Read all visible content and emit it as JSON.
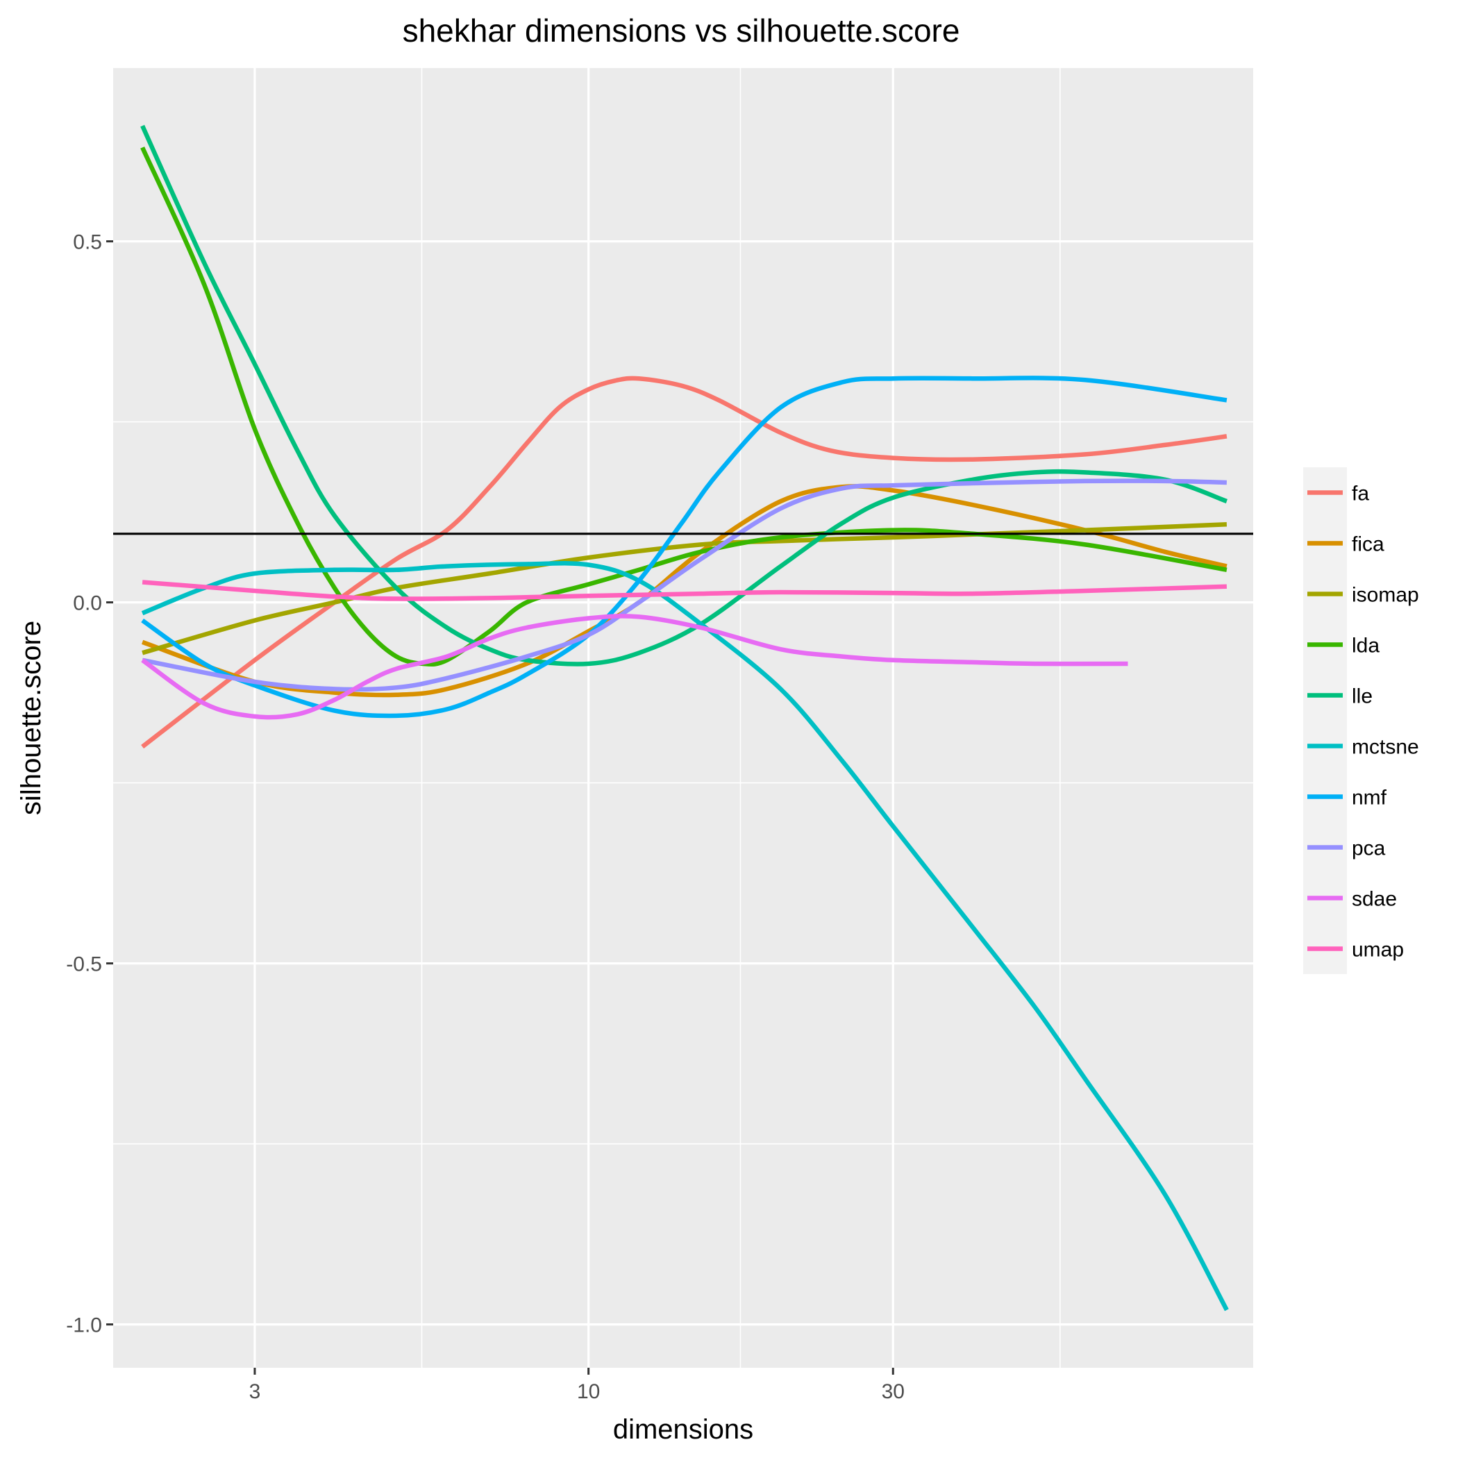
{
  "chart_data": {
    "type": "line",
    "title": "shekhar dimensions vs silhouette.score",
    "xlabel": "dimensions",
    "ylabel": "silhouette.score",
    "x_scale": "log10",
    "xlim": [
      1.8,
      110
    ],
    "ylim": [
      -1.06,
      0.74
    ],
    "x_ticks": [
      3,
      10,
      30
    ],
    "x_tick_labels": [
      "3",
      "10",
      "30"
    ],
    "x_minor_ticks": [
      5.48,
      17.3,
      54.8
    ],
    "y_ticks": [
      0.5,
      0.0,
      -0.5,
      -1.0
    ],
    "y_tick_labels": [
      "0.5",
      "0.0",
      "-0.5",
      "-1.0"
    ],
    "y_minor_ticks": [
      0.25,
      -0.25,
      -0.75
    ],
    "reference_line": {
      "y": 0.095,
      "color": "#000000"
    },
    "grid": true,
    "legend": "right",
    "series": [
      {
        "name": "fa",
        "color": "#F8766D",
        "x": [
          2,
          3,
          4,
          5,
          6,
          7,
          8,
          9,
          10,
          11,
          12,
          14,
          16,
          20,
          24,
          30,
          40,
          60,
          80,
          100
        ],
        "y": [
          -0.2,
          -0.08,
          0.0,
          0.06,
          0.1,
          0.16,
          0.22,
          0.27,
          0.295,
          0.307,
          0.31,
          0.3,
          0.28,
          0.235,
          0.21,
          0.2,
          0.198,
          0.205,
          0.218,
          0.23
        ]
      },
      {
        "name": "fica",
        "color": "#D89000",
        "x": [
          2,
          3,
          4,
          5,
          6,
          8,
          10,
          12,
          15,
          20,
          25,
          30,
          40,
          60,
          80,
          100
        ],
        "y": [
          -0.055,
          -0.11,
          -0.125,
          -0.128,
          -0.12,
          -0.085,
          -0.04,
          0.0,
          0.07,
          0.14,
          0.16,
          0.155,
          0.135,
          0.1,
          0.07,
          0.05
        ]
      },
      {
        "name": "isomap",
        "color": "#A3A500",
        "x": [
          2,
          3,
          4,
          5,
          7,
          10,
          15,
          20,
          30,
          40,
          60,
          100
        ],
        "y": [
          -0.07,
          -0.025,
          0.0,
          0.02,
          0.04,
          0.062,
          0.08,
          0.085,
          0.09,
          0.094,
          0.1,
          0.108
        ]
      },
      {
        "name": "lda",
        "color": "#39B600",
        "x": [
          2,
          2.5,
          3,
          3.5,
          4,
          4.5,
          5,
          5.5,
          6,
          7,
          8,
          10,
          12,
          15,
          20,
          30,
          40,
          60,
          100
        ],
        "y": [
          0.63,
          0.44,
          0.24,
          0.11,
          0.02,
          -0.04,
          -0.075,
          -0.085,
          -0.08,
          -0.04,
          0.0,
          0.025,
          0.045,
          0.07,
          0.09,
          0.1,
          0.095,
          0.08,
          0.045
        ]
      },
      {
        "name": "lle",
        "color": "#00BF7D",
        "x": [
          2,
          2.5,
          3,
          3.5,
          4,
          5,
          6,
          7,
          8,
          10,
          12,
          15,
          20,
          25,
          30,
          40,
          50,
          60,
          80,
          100
        ],
        "y": [
          0.66,
          0.47,
          0.33,
          0.21,
          0.12,
          0.02,
          -0.035,
          -0.065,
          -0.08,
          -0.085,
          -0.07,
          -0.03,
          0.05,
          0.11,
          0.145,
          0.17,
          0.18,
          0.18,
          0.17,
          0.14
        ]
      },
      {
        "name": "mctsne",
        "color": "#00BFC4",
        "x": [
          2,
          2.5,
          3,
          4,
          5,
          6,
          8,
          10,
          12,
          15,
          20,
          25,
          30,
          40,
          50,
          60,
          80,
          100
        ],
        "y": [
          -0.015,
          0.02,
          0.04,
          0.045,
          0.045,
          0.05,
          0.053,
          0.052,
          0.03,
          -0.03,
          -0.12,
          -0.22,
          -0.31,
          -0.45,
          -0.56,
          -0.66,
          -0.82,
          -0.98
        ]
      },
      {
        "name": "nmf",
        "color": "#00B0F6",
        "x": [
          2,
          2.5,
          3,
          4,
          5,
          6,
          7,
          8,
          10,
          12,
          14,
          16,
          20,
          25,
          30,
          40,
          60,
          100
        ],
        "y": [
          -0.025,
          -0.085,
          -0.115,
          -0.15,
          -0.157,
          -0.148,
          -0.125,
          -0.1,
          -0.045,
          0.03,
          0.11,
          0.18,
          0.27,
          0.305,
          0.31,
          0.31,
          0.308,
          0.28
        ]
      },
      {
        "name": "pca",
        "color": "#9590FF",
        "x": [
          2,
          3,
          4,
          5,
          6,
          8,
          10,
          12,
          15,
          20,
          25,
          30,
          40,
          60,
          80,
          100
        ],
        "y": [
          -0.08,
          -0.11,
          -0.12,
          -0.118,
          -0.105,
          -0.075,
          -0.045,
          0.0,
          0.06,
          0.13,
          0.158,
          0.162,
          0.165,
          0.168,
          0.168,
          0.166
        ]
      },
      {
        "name": "sdae",
        "color": "#E76BF3",
        "x": [
          2,
          2.5,
          3,
          3.5,
          4,
          4.5,
          5,
          6,
          7,
          8,
          10,
          12,
          15,
          20,
          25,
          30,
          40,
          50,
          70
        ],
        "y": [
          -0.08,
          -0.14,
          -0.158,
          -0.155,
          -0.135,
          -0.11,
          -0.092,
          -0.075,
          -0.05,
          -0.035,
          -0.022,
          -0.02,
          -0.035,
          -0.065,
          -0.075,
          -0.08,
          -0.083,
          -0.085,
          -0.085
        ]
      },
      {
        "name": "umap",
        "color": "#FF62BC",
        "x": [
          2,
          3,
          4,
          5,
          7,
          10,
          15,
          20,
          30,
          40,
          60,
          100
        ],
        "y": [
          0.028,
          0.016,
          0.008,
          0.005,
          0.006,
          0.009,
          0.012,
          0.014,
          0.013,
          0.012,
          0.016,
          0.022
        ]
      }
    ]
  }
}
